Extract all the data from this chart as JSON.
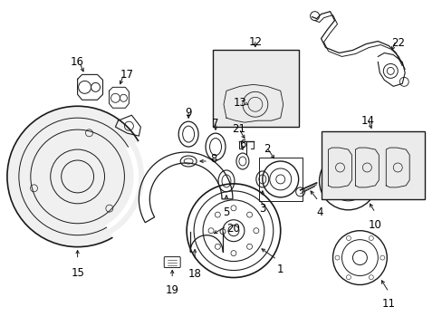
{
  "bg_color": "#ffffff",
  "line_color": "#1a1a1a",
  "label_color": "#000000",
  "label_fontsize": 8.5,
  "fig_width": 4.89,
  "fig_height": 3.6,
  "dpi": 100,
  "shade_color": "#e8e8e8"
}
